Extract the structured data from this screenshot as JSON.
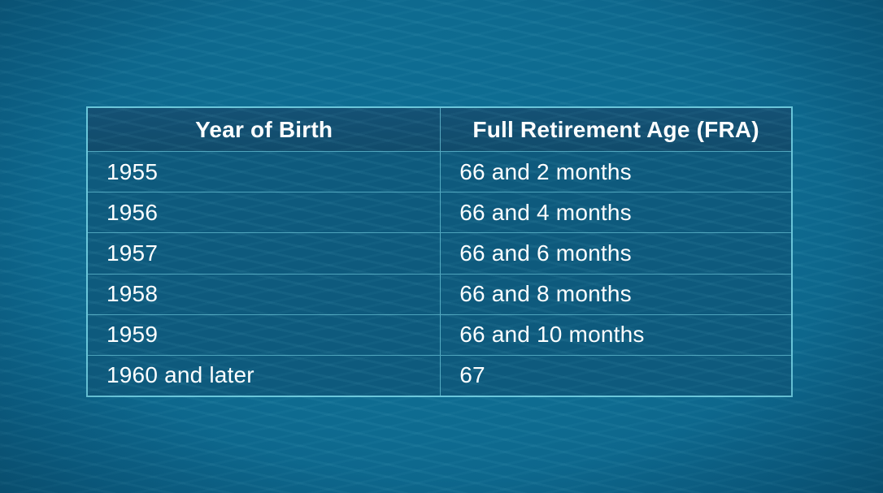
{
  "chart_data": {
    "type": "table",
    "columns": [
      "Year of Birth",
      "Full Retirement Age (FRA)"
    ],
    "rows": [
      [
        "1955",
        "66 and 2 months"
      ],
      [
        "1956",
        "66 and 4 months"
      ],
      [
        "1957",
        "66 and 6 months"
      ],
      [
        "1958",
        "66 and 8 months"
      ],
      [
        "1959",
        "66 and 10 months"
      ],
      [
        "1960 and later",
        "67"
      ]
    ],
    "title": "",
    "legend": false,
    "grid": true
  },
  "table": {
    "headers": {
      "year": "Year of Birth",
      "fra": "Full Retirement Age (FRA)"
    },
    "rows": [
      {
        "year": "1955",
        "fra": "66 and 2 months"
      },
      {
        "year": "1956",
        "fra": "66 and 4 months"
      },
      {
        "year": "1957",
        "fra": "66 and 6 months"
      },
      {
        "year": "1958",
        "fra": "66 and 8 months"
      },
      {
        "year": "1959",
        "fra": "66 and 10 months"
      },
      {
        "year": "1960 and later",
        "fra": "67"
      }
    ]
  },
  "colors": {
    "background_center": "#0F7097",
    "background_edge": "#0A5578",
    "header_bg": "#124E6F",
    "cell_bg": "#0E5A7D",
    "border": "#7AD6E6",
    "text": "#FFFFFF"
  }
}
